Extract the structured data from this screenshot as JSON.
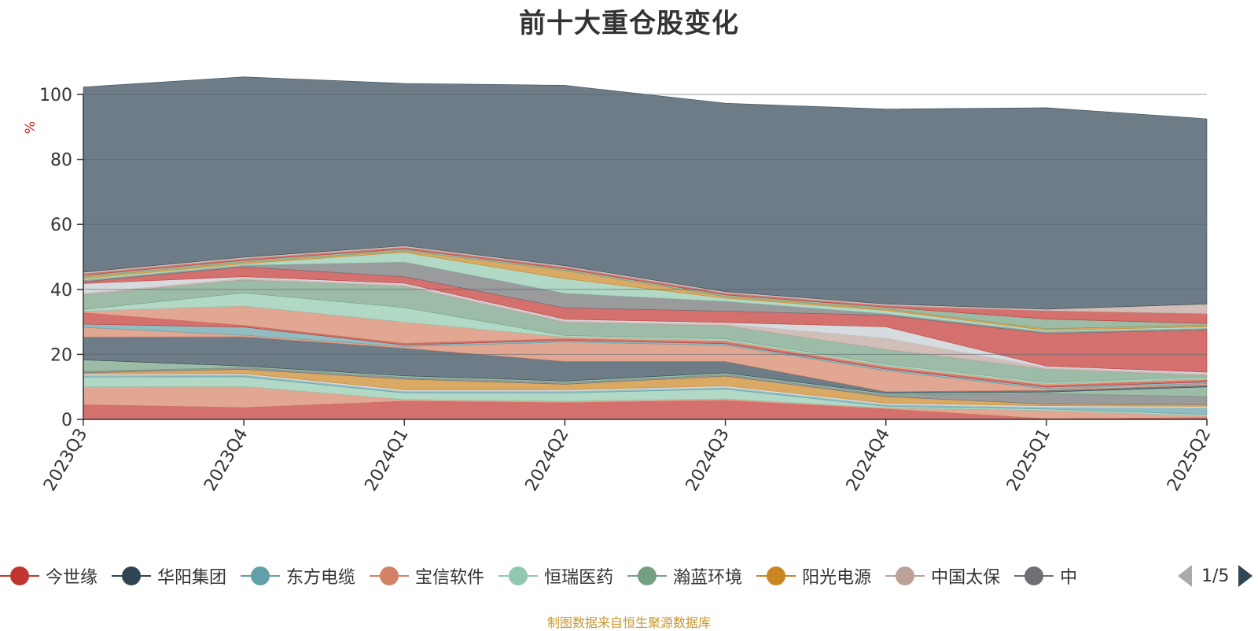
{
  "title": "前十大重仓股变化",
  "source_note": "制图数据来自恒生聚源数据库",
  "legend": {
    "page_indicator": "1/5",
    "prev_icon": "triangle-left-icon",
    "next_icon": "triangle-right-icon"
  },
  "chart_data": {
    "type": "area",
    "stacked": true,
    "title": "前十大重仓股变化",
    "ylabel": "%",
    "xlabel": "",
    "ylim": [
      0,
      100
    ],
    "yticks": [
      0,
      20,
      40,
      60,
      80,
      100
    ],
    "grid": true,
    "legend_position": "bottom",
    "categories": [
      "2023Q3",
      "2023Q4",
      "2024Q1",
      "2024Q2",
      "2024Q3",
      "2024Q4",
      "2025Q1",
      "2025Q2"
    ],
    "series": [
      {
        "name": "今世缘",
        "color": "#c23531",
        "values": [
          4.5,
          3.6,
          5.6,
          5.1,
          5.8,
          3.2,
          0.2,
          0.5
        ]
      },
      {
        "name": "",
        "color": "#d48265",
        "values": [
          5.5,
          6.5,
          0.5,
          0.5,
          0.5,
          0.3,
          2.5,
          0.5
        ]
      },
      {
        "name": "",
        "color": "#91c7ae",
        "values": [
          3.0,
          3.0,
          2.0,
          2.5,
          3.0,
          0.5,
          0.5,
          0.5
        ]
      },
      {
        "name": "",
        "color": "#61a0a8",
        "values": [
          0.5,
          0.5,
          0.5,
          0.5,
          0.5,
          0.5,
          0.5,
          2.0
        ]
      },
      {
        "name": "",
        "color": "#c4ccd3",
        "values": [
          0.5,
          0.5,
          0.5,
          0.5,
          0.5,
          0.5,
          0.5,
          0.5
        ]
      },
      {
        "name": "",
        "color": "#ca8622",
        "values": [
          0.3,
          1.3,
          3.3,
          1.7,
          3.0,
          2.0,
          0.5,
          0.5
        ]
      },
      {
        "name": "",
        "color": "#6e7074",
        "values": [
          0.5,
          0.5,
          0.5,
          0.5,
          0.5,
          0.5,
          3.2,
          2.5
        ]
      },
      {
        "name": "",
        "color": "#749f83",
        "values": [
          3.5,
          0.5,
          0.5,
          0.5,
          0.5,
          0.5,
          0.5,
          3.0
        ]
      },
      {
        "name": "",
        "color": "#2f4554",
        "values": [
          7.0,
          9.0,
          8.5,
          6.0,
          3.5,
          0.5,
          0.5,
          0.5
        ]
      },
      {
        "name": "",
        "color": "#d48265",
        "values": [
          3.0,
          0.5,
          0.5,
          6.0,
          5.0,
          6.5,
          0.5,
          0.5
        ]
      },
      {
        "name": "",
        "color": "#61a0a8",
        "values": [
          1.0,
          2.5,
          0.5,
          0.5,
          0.5,
          0.5,
          0.5,
          0.5
        ]
      },
      {
        "name": "",
        "color": "#c23531",
        "values": [
          3.5,
          0.5,
          0.5,
          0.5,
          0.5,
          0.5,
          0.5,
          0.5
        ]
      },
      {
        "name": "",
        "color": "#d48265",
        "values": [
          0.5,
          6.0,
          6.5,
          0.5,
          0.5,
          0.5,
          0.5,
          0.5
        ]
      },
      {
        "name": "",
        "color": "#91c7ae",
        "values": [
          0.5,
          4.0,
          4.5,
          0.5,
          0.5,
          0.5,
          0.5,
          0.5
        ]
      },
      {
        "name": "",
        "color": "#749f83",
        "values": [
          4.5,
          4.0,
          6.5,
          4.0,
          4.0,
          4.5,
          4.0,
          0.5
        ]
      },
      {
        "name": "",
        "color": "#bda29a",
        "values": [
          0.5,
          0.5,
          0.5,
          0.5,
          0.5,
          3.5,
          0.5,
          0.5
        ]
      },
      {
        "name": "",
        "color": "#c4ccd3",
        "values": [
          3.0,
          0.5,
          0.5,
          0.5,
          0.5,
          3.5,
          0.5,
          0.5
        ]
      },
      {
        "name": "",
        "color": "#c23531",
        "values": [
          0.5,
          3.0,
          2.0,
          3.5,
          3.5,
          3.5,
          10.0,
          13.0
        ]
      },
      {
        "name": "",
        "color": "#6e7074",
        "values": [
          0.5,
          0.5,
          4.5,
          4.5,
          3.0,
          0.5,
          0.5,
          0.5
        ]
      },
      {
        "name": "",
        "color": "#91c7ae",
        "values": [
          0.5,
          0.5,
          3.0,
          4.5,
          1.0,
          1.0,
          0.5,
          0.5
        ]
      },
      {
        "name": "",
        "color": "#ca8622",
        "values": [
          0.5,
          0.5,
          0.5,
          2.5,
          0.5,
          0.5,
          0.5,
          0.5
        ]
      },
      {
        "name": "",
        "color": "#749f83",
        "values": [
          0.5,
          0.5,
          0.5,
          0.5,
          0.5,
          0.5,
          3.0,
          0.5
        ]
      },
      {
        "name": "",
        "color": "#c23531",
        "values": [
          0.5,
          0.5,
          0.5,
          0.5,
          0.5,
          0.5,
          2.5,
          3.0
        ]
      },
      {
        "name": "",
        "color": "#bda29a",
        "values": [
          0.5,
          0.5,
          0.5,
          0.5,
          0.5,
          0.5,
          0.5,
          3.0
        ]
      },
      {
        "name": "",
        "color": "#2f4554",
        "values": [
          57.0,
          55.5,
          50.0,
          55.5,
          58.0,
          60.0,
          62.0,
          57.0
        ]
      }
    ],
    "legend_items": [
      {
        "name": "今世缘",
        "color": "#c23531"
      },
      {
        "name": "华阳集团",
        "color": "#2f4554"
      },
      {
        "name": "东方电缆",
        "color": "#61a0a8"
      },
      {
        "name": "宝信软件",
        "color": "#d48265"
      },
      {
        "name": "恒瑞医药",
        "color": "#91c7ae"
      },
      {
        "name": "瀚蓝环境",
        "color": "#749f83"
      },
      {
        "name": "阳光电源",
        "color": "#ca8622"
      },
      {
        "name": "中国太保",
        "color": "#bda29a"
      },
      {
        "name": "中",
        "color": "#6e7074"
      }
    ]
  }
}
